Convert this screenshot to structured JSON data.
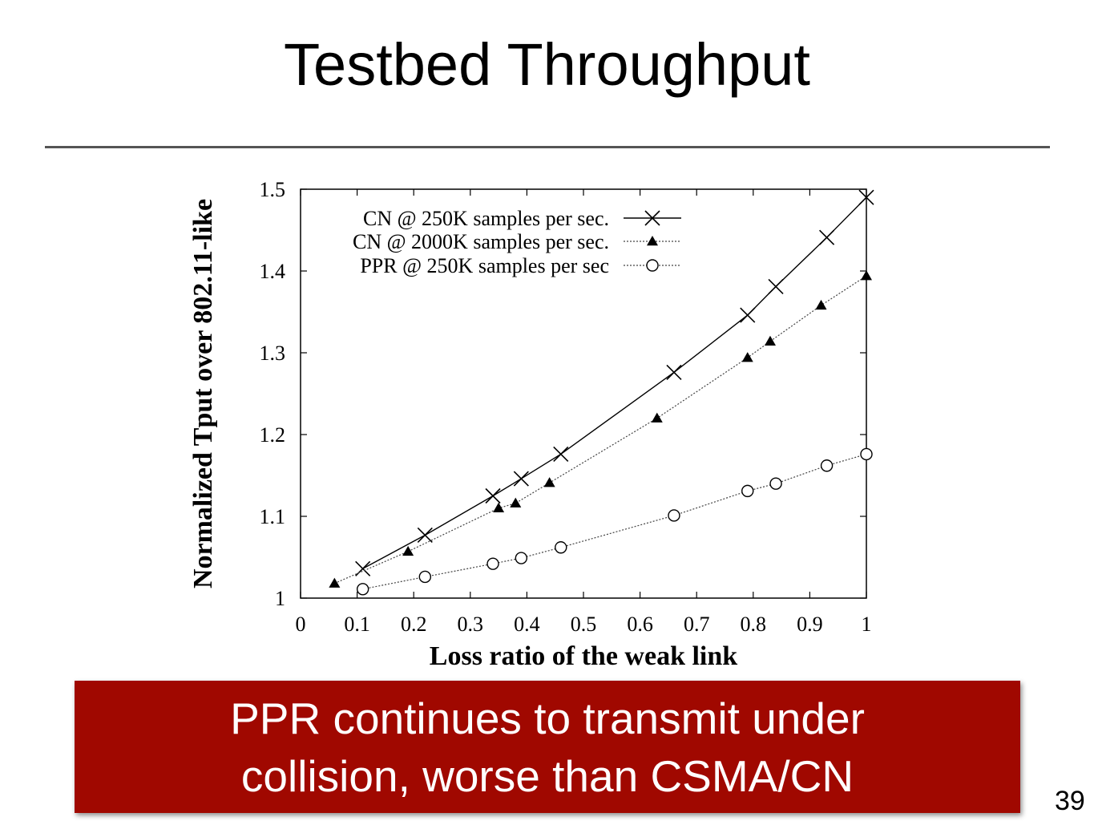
{
  "slide": {
    "title": "Testbed Throughput",
    "callout_line1": "PPR continues to transmit under",
    "callout_line2": "collision, worse than CSMA/CN",
    "callout_color": "#a00800",
    "page_number": "39"
  },
  "chart_data": {
    "type": "line",
    "title": "",
    "xlabel": "Loss ratio of the weak link",
    "ylabel": "Normalized Tput over 802.11-like",
    "xlim": [
      0,
      1
    ],
    "ylim": [
      1,
      1.5
    ],
    "xticks": [
      "0",
      "0.1",
      "0.2",
      "0.3",
      "0.4",
      "0.5",
      "0.6",
      "0.7",
      "0.8",
      "0.9",
      "1"
    ],
    "yticks": [
      "1",
      "1.1",
      "1.2",
      "1.3",
      "1.4",
      "1.5"
    ],
    "grid": false,
    "legend_position": "top-left",
    "series": [
      {
        "name": "CN @ 250K samples per sec.",
        "marker": "x",
        "line": "solid",
        "color": "#000000",
        "x": [
          0.11,
          0.22,
          0.34,
          0.39,
          0.46,
          0.66,
          0.79,
          0.84,
          0.93,
          1.0
        ],
        "y": [
          1.036,
          1.077,
          1.125,
          1.146,
          1.176,
          1.276,
          1.346,
          1.381,
          1.441,
          1.49
        ]
      },
      {
        "name": "CN @ 2000K samples per sec.",
        "marker": "filled-triangle",
        "line": "dotted",
        "color": "#000000",
        "x": [
          0.06,
          0.19,
          0.35,
          0.38,
          0.44,
          0.63,
          0.79,
          0.83,
          0.92,
          1.0
        ],
        "y": [
          1.018,
          1.057,
          1.11,
          1.116,
          1.141,
          1.22,
          1.294,
          1.314,
          1.358,
          1.394
        ]
      },
      {
        "name": "PPR @ 250K samples per sec",
        "marker": "open-circle",
        "line": "dotted",
        "color": "#000000",
        "x": [
          0.11,
          0.22,
          0.34,
          0.39,
          0.46,
          0.66,
          0.79,
          0.84,
          0.93,
          1.0
        ],
        "y": [
          1.011,
          1.026,
          1.042,
          1.049,
          1.062,
          1.101,
          1.131,
          1.14,
          1.162,
          1.176
        ]
      }
    ]
  }
}
